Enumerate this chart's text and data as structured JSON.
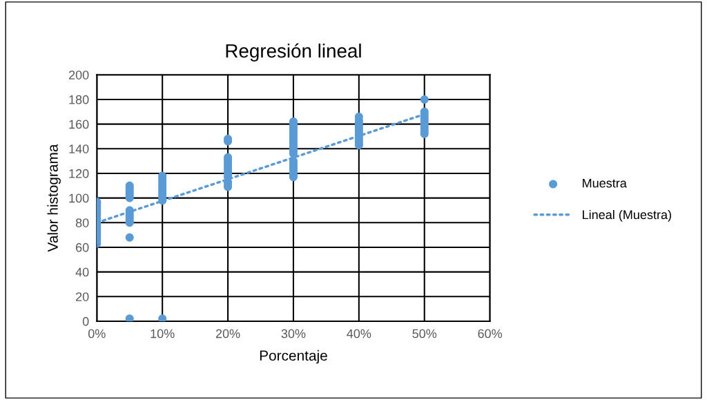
{
  "chart_data": {
    "type": "scatter",
    "title": "Regresión lineal",
    "xlabel": "Porcentaje",
    "ylabel": "Valor histograma",
    "xlim": [
      0,
      60
    ],
    "xticks": [
      {
        "value": 0,
        "label": "0%"
      },
      {
        "value": 10,
        "label": "10%"
      },
      {
        "value": 20,
        "label": "20%"
      },
      {
        "value": 30,
        "label": "30%"
      },
      {
        "value": 40,
        "label": "40%"
      },
      {
        "value": 50,
        "label": "50%"
      },
      {
        "value": 60,
        "label": "60%"
      }
    ],
    "ylim": [
      0,
      200
    ],
    "yticks": [
      0,
      20,
      40,
      60,
      80,
      100,
      120,
      140,
      160,
      180,
      200
    ],
    "grid": true,
    "legend": "right",
    "marker": "circle",
    "series": [
      {
        "name": "Muestra",
        "color": "#5b9bd5",
        "x": [
          0,
          0,
          0,
          0,
          0,
          0,
          0,
          0,
          0,
          0,
          0,
          0,
          0,
          0,
          0,
          0,
          0,
          0,
          5,
          5,
          5,
          5,
          5,
          5,
          5,
          5,
          5,
          5,
          5,
          5,
          5,
          5,
          10,
          10,
          10,
          10,
          10,
          10,
          10,
          10,
          10,
          10,
          10,
          10,
          20,
          20,
          20,
          20,
          20,
          20,
          20,
          20,
          20,
          20,
          20,
          20,
          20,
          20,
          30,
          30,
          30,
          30,
          30,
          30,
          30,
          30,
          30,
          30,
          30,
          30,
          30,
          30,
          30,
          30,
          30,
          30,
          30,
          30,
          30,
          40,
          40,
          40,
          40,
          40,
          40,
          40,
          40,
          40,
          40,
          40,
          40,
          50,
          50,
          50,
          50,
          50,
          50,
          50,
          50,
          50,
          50,
          50
        ],
        "values": [
          63,
          66,
          68,
          70,
          72,
          74,
          76,
          78,
          80,
          82,
          84,
          86,
          88,
          90,
          92,
          94,
          96,
          97,
          2,
          68,
          80,
          82,
          84,
          86,
          88,
          90,
          100,
          102,
          104,
          106,
          108,
          110,
          2,
          98,
          100,
          102,
          104,
          106,
          108,
          110,
          112,
          114,
          116,
          118,
          146,
          148,
          109,
          111,
          113,
          117,
          119,
          121,
          123,
          125,
          127,
          129,
          131,
          133,
          117,
          119,
          122,
          124,
          126,
          128,
          130,
          136,
          138,
          140,
          142,
          144,
          146,
          148,
          150,
          152,
          154,
          156,
          158,
          160,
          162,
          143,
          145,
          147,
          149,
          151,
          153,
          155,
          157,
          159,
          161,
          163,
          166,
          180,
          152,
          154,
          156,
          158,
          160,
          162,
          164,
          166,
          168,
          170
        ]
      },
      {
        "name": "Lineal (Muestra)",
        "type": "line",
        "line_style": "dotted",
        "marker": "none",
        "color": "#5b9bd5",
        "x": [
          0,
          50
        ],
        "values": [
          80,
          168
        ]
      }
    ]
  }
}
